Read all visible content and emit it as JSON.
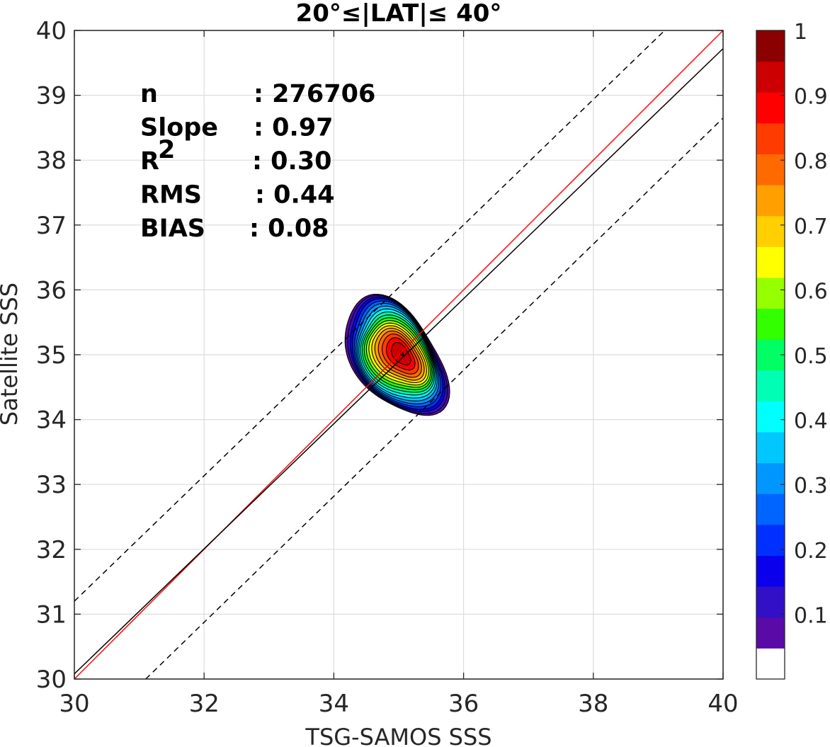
{
  "chart_data": {
    "type": "contour",
    "title": "20°≤|LAT|≤ 40°",
    "xlabel": "TSG-SAMOS SSS",
    "ylabel": "Satellite SSS",
    "xlim": [
      30,
      40
    ],
    "ylim": [
      30,
      40
    ],
    "xticks": [
      "30",
      "32",
      "34",
      "36",
      "38",
      "40"
    ],
    "yticks": [
      "30",
      "31",
      "32",
      "33",
      "34",
      "35",
      "36",
      "37",
      "38",
      "39",
      "40"
    ],
    "grid": true,
    "stats": [
      {
        "label": "n",
        "value": ": 276706"
      },
      {
        "label": "Slope",
        "value": ": 0.97"
      },
      {
        "label": "R",
        "sup": "2",
        "value": ": 0.30"
      },
      {
        "label": "RMS",
        "value": ": 0.44"
      },
      {
        "label": "BIAS",
        "value": ": 0.08"
      }
    ],
    "lines": [
      {
        "role": "one-to-one",
        "color": "#ff0000",
        "style": "solid",
        "points": [
          [
            30,
            30
          ],
          [
            40,
            40
          ]
        ]
      },
      {
        "role": "regression",
        "color": "#000000",
        "style": "solid",
        "points": [
          [
            30,
            30.08
          ],
          [
            40,
            39.72
          ]
        ]
      },
      {
        "role": "upper-bound",
        "color": "#000000",
        "style": "dashed",
        "points": [
          [
            30,
            31.2
          ],
          [
            39.1,
            40
          ]
        ]
      },
      {
        "role": "lower-bound",
        "color": "#000000",
        "style": "dashed",
        "points": [
          [
            31.1,
            30
          ],
          [
            40,
            38.65
          ]
        ]
      }
    ],
    "density_peak": {
      "x": 35.0,
      "y": 35.0
    },
    "contour_levels": [
      0.05,
      0.1,
      0.15,
      0.2,
      0.25,
      0.3,
      0.35,
      0.4,
      0.45,
      0.5,
      0.55,
      0.6,
      0.65,
      0.7,
      0.75,
      0.8,
      0.85,
      0.9,
      0.95,
      1.0
    ],
    "colorbar": {
      "range": [
        0,
        1
      ],
      "ticks": [
        "0.1",
        "0.2",
        "0.3",
        "0.4",
        "0.5",
        "0.6",
        "0.7",
        "0.8",
        "0.9",
        "1"
      ],
      "tick_values": [
        0.1,
        0.2,
        0.3,
        0.4,
        0.5,
        0.6,
        0.7,
        0.8,
        0.9,
        1.0
      ],
      "colors": [
        "#ffffff",
        "#5a0aa6",
        "#3210c8",
        "#0a00ec",
        "#0030ff",
        "#0064ff",
        "#0096ff",
        "#00c8ff",
        "#00ffff",
        "#00ffb4",
        "#00ff64",
        "#32ff00",
        "#96ff00",
        "#ffff00",
        "#ffcf00",
        "#ff9f00",
        "#ff6a00",
        "#ff3c00",
        "#ff0000",
        "#cc0000",
        "#8b0000"
      ]
    }
  }
}
